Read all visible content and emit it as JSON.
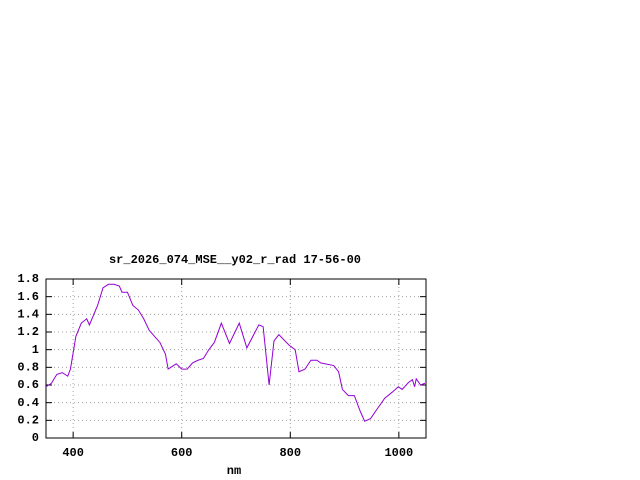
{
  "chart_data": {
    "type": "line",
    "title": "sr_2026_074_MSE__y02_r_rad 17-56-00",
    "x_label": "nm",
    "x": [
      350,
      360,
      370,
      380,
      390,
      395,
      405,
      415,
      425,
      430,
      445,
      455,
      465,
      475,
      485,
      490,
      500,
      510,
      520,
      530,
      540,
      550,
      560,
      570,
      575,
      590,
      600,
      610,
      620,
      630,
      640,
      650,
      660,
      673,
      688,
      706,
      720,
      742,
      750,
      761,
      770,
      779,
      798,
      809,
      816,
      827,
      838,
      849,
      856,
      880,
      889,
      896,
      907,
      918,
      929,
      937,
      948,
      959,
      974,
      988,
      999,
      1006,
      1018,
      1025,
      1029,
      1032,
      1040,
      1048
    ],
    "series": [
      {
        "name": "sr_2026_074_MSE__y02_r_rad",
        "color": "#9400d3",
        "values": [
          0.58,
          0.62,
          0.72,
          0.74,
          0.7,
          0.78,
          1.15,
          1.3,
          1.35,
          1.28,
          1.5,
          1.7,
          1.74,
          1.74,
          1.72,
          1.65,
          1.65,
          1.5,
          1.45,
          1.35,
          1.22,
          1.15,
          1.08,
          0.95,
          0.78,
          0.84,
          0.78,
          0.78,
          0.85,
          0.88,
          0.9,
          1.0,
          1.08,
          1.3,
          1.07,
          1.3,
          1.02,
          1.28,
          1.26,
          0.6,
          1.1,
          1.17,
          1.05,
          1.0,
          0.75,
          0.78,
          0.88,
          0.88,
          0.85,
          0.82,
          0.75,
          0.55,
          0.48,
          0.48,
          0.3,
          0.19,
          0.22,
          0.32,
          0.45,
          0.52,
          0.58,
          0.55,
          0.63,
          0.66,
          0.58,
          0.67,
          0.6,
          0.62
        ]
      }
    ],
    "xlim": [
      350,
      1050
    ],
    "xticks": [
      400,
      600,
      800,
      1000
    ],
    "ylim": [
      0,
      1.8
    ],
    "yticks": [
      0,
      0.2,
      0.4,
      0.6,
      0.8,
      1,
      1.2,
      1.4,
      1.6,
      1.8
    ],
    "grid": true
  }
}
